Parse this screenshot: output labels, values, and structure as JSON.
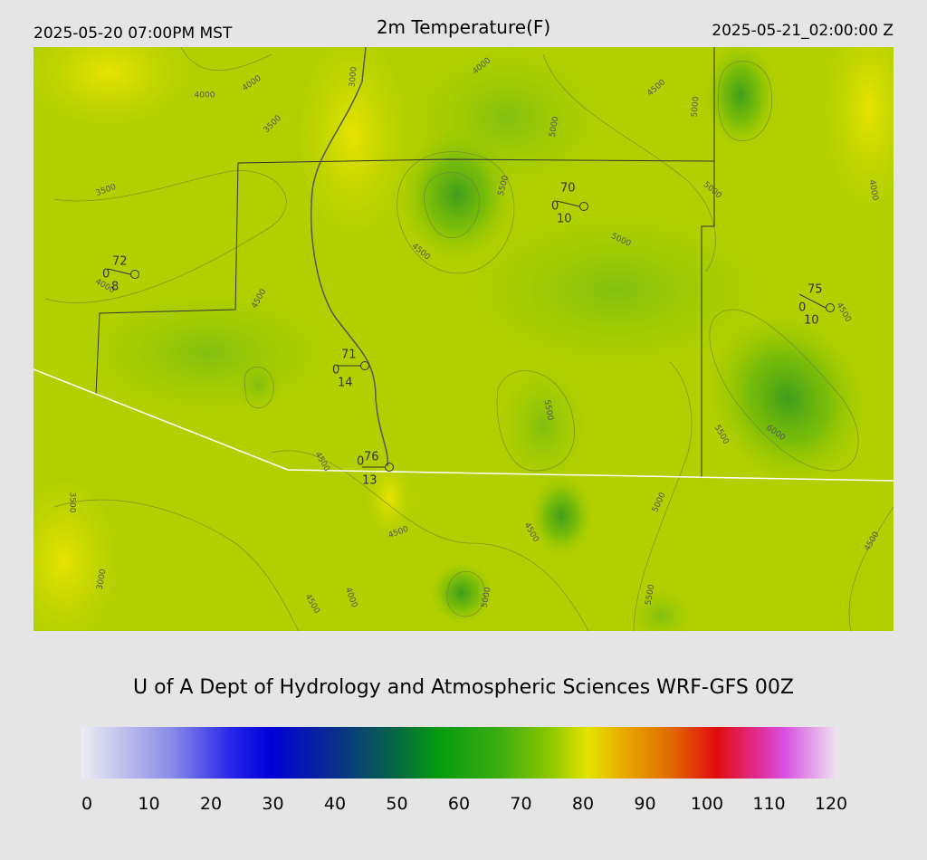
{
  "header": {
    "left": "2025-05-20 07:00PM MST",
    "title": "2m Temperature(F)",
    "right": "2025-05-21_02:00:00 Z"
  },
  "stations": [
    {
      "temp": 72,
      "left": 0,
      "bottom": 8
    },
    {
      "temp": 70,
      "left": 0,
      "bottom": 10
    },
    {
      "temp": 75,
      "left": 0,
      "bottom": 10
    },
    {
      "temp": 71,
      "left": 0,
      "bottom": 14
    },
    {
      "temp": 76,
      "left": 0,
      "bottom": 13
    }
  ],
  "contour_labels": [
    "4000",
    "4000",
    "4000",
    "4000",
    "4000",
    "4000",
    "3500",
    "3500",
    "3500",
    "3000",
    "3000",
    "4500",
    "4500",
    "4500",
    "4500",
    "4500",
    "4500",
    "4500",
    "4500",
    "5000",
    "5000",
    "5000",
    "5000",
    "5000",
    "5000",
    "5500",
    "5500",
    "5500",
    "5500",
    "6000",
    "4500"
  ],
  "footer": "U of A Dept of Hydrology and Atmospheric Sciences WRF-GFS 00Z",
  "colorbar": {
    "range": [
      0,
      120
    ],
    "ticks": [
      0,
      10,
      20,
      30,
      40,
      50,
      60,
      70,
      80,
      90,
      100,
      110,
      120
    ]
  }
}
